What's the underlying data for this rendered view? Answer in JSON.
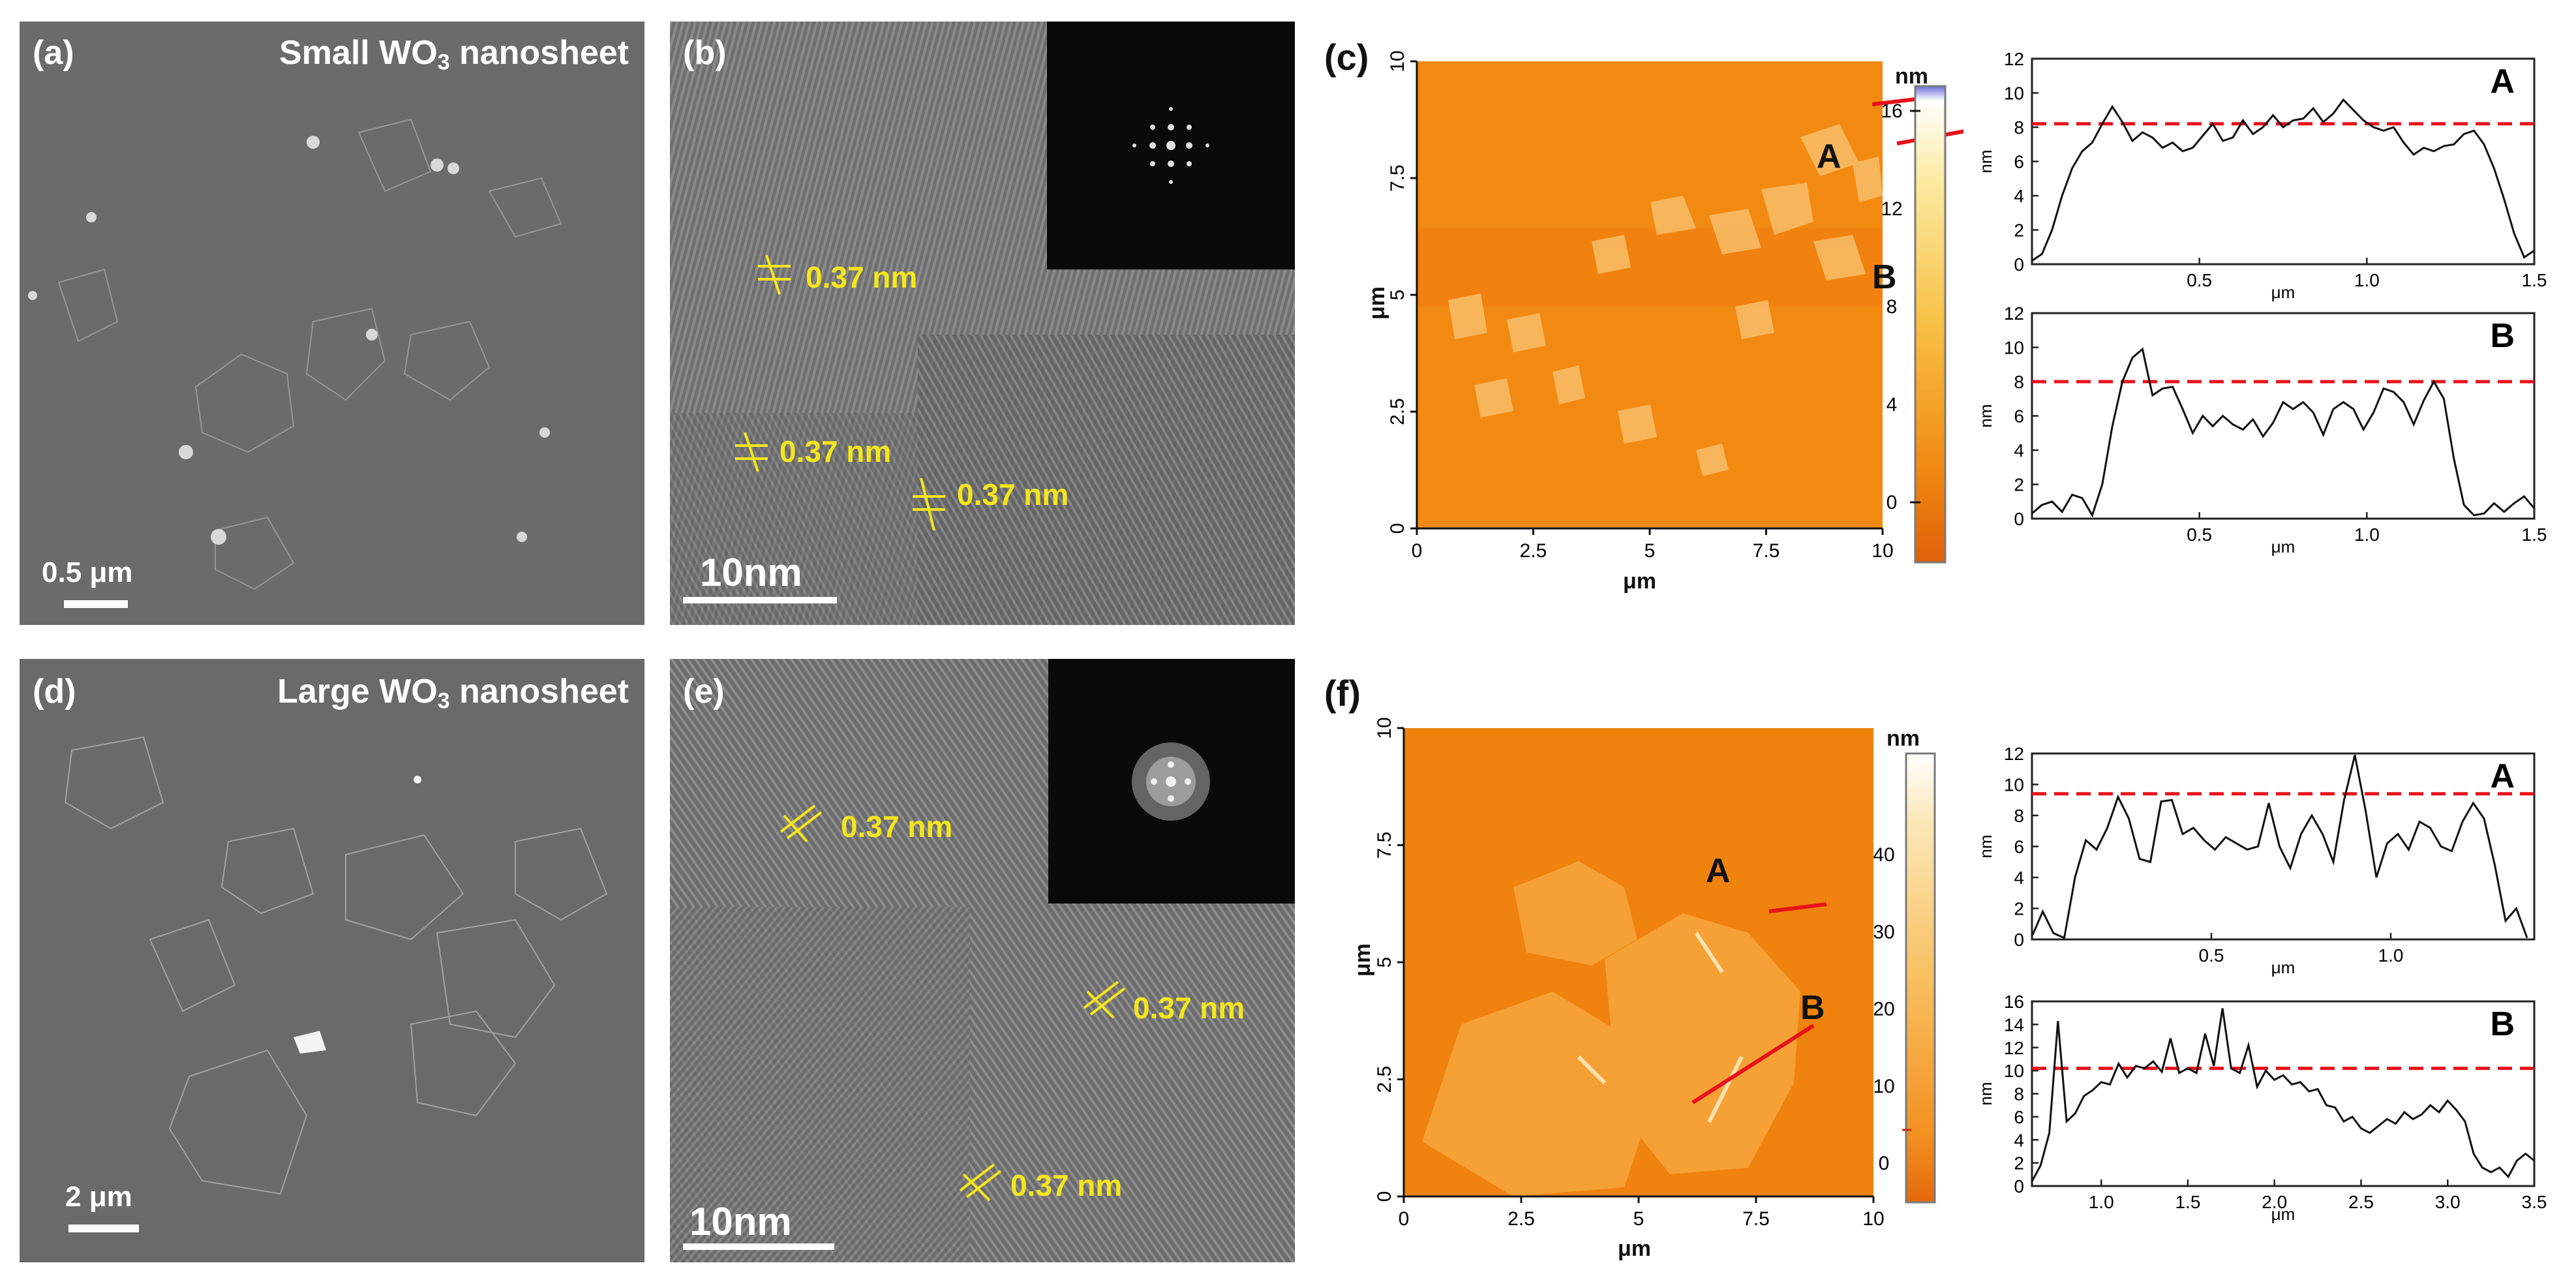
{
  "panels": {
    "a": {
      "label": "(a)",
      "title_pre": "Small WO",
      "title_sub": "3",
      "title_post": " nanosheet",
      "scale_bar": "0.5 μm"
    },
    "b": {
      "label": "(b)",
      "fringes": [
        "0.37 nm",
        "0.37 nm",
        "0.37 nm"
      ],
      "scale_bar": "10nm"
    },
    "c": {
      "label": "(c)",
      "axis_unit": "μm",
      "x_ticks": [
        "0",
        "2.5",
        "5",
        "7.5",
        "10"
      ],
      "y_ticks": [
        "0",
        "2.5",
        "5",
        "7.5",
        "10"
      ],
      "colorbar_unit": "nm",
      "colorbar_ticks": [
        "0",
        "4",
        "8",
        "12",
        "16"
      ],
      "line_labels": [
        "A",
        "B"
      ]
    },
    "d": {
      "label": "(d)",
      "title_pre": "Large WO",
      "title_sub": "3",
      "title_post": " nanosheet",
      "scale_bar": "2 μm"
    },
    "e": {
      "label": "(e)",
      "fringes": [
        "0.37 nm",
        "0.37 nm",
        "0.37 nm"
      ],
      "scale_bar": "10nm"
    },
    "f": {
      "label": "(f)",
      "axis_unit": "μm",
      "x_ticks": [
        "0",
        "2.5",
        "5",
        "7.5",
        "10"
      ],
      "y_ticks": [
        "0",
        "2.5",
        "5",
        "7.5",
        "10"
      ],
      "colorbar_unit": "nm",
      "colorbar_ticks": [
        "0",
        "10",
        "20",
        "30",
        "40"
      ],
      "line_labels": [
        "A",
        "B"
      ]
    }
  },
  "chart_data": [
    {
      "id": "c-A",
      "type": "line",
      "label": "A",
      "xlabel": "μm",
      "ylabel": "nm",
      "xlim": [
        0,
        1.5
      ],
      "ylim": [
        0,
        12
      ],
      "xticks": [
        "0.5",
        "1.0",
        "1.5"
      ],
      "yticks": [
        "0",
        "2",
        "4",
        "6",
        "8",
        "10",
        "12"
      ],
      "reference_line": 8.2,
      "x": [
        0.0,
        0.03,
        0.06,
        0.09,
        0.12,
        0.15,
        0.18,
        0.21,
        0.24,
        0.27,
        0.3,
        0.33,
        0.36,
        0.39,
        0.42,
        0.45,
        0.48,
        0.51,
        0.54,
        0.57,
        0.6,
        0.63,
        0.66,
        0.69,
        0.72,
        0.75,
        0.78,
        0.81,
        0.84,
        0.87,
        0.9,
        0.93,
        0.96,
        0.99,
        1.02,
        1.05,
        1.08,
        1.11,
        1.14,
        1.17,
        1.2,
        1.23,
        1.26,
        1.29,
        1.32,
        1.35,
        1.38,
        1.41,
        1.44,
        1.47,
        1.5
      ],
      "y": [
        0.2,
        0.6,
        2.0,
        4.0,
        5.6,
        6.6,
        7.1,
        8.2,
        9.2,
        8.3,
        7.2,
        7.7,
        7.4,
        6.8,
        7.1,
        6.6,
        6.8,
        7.5,
        8.2,
        7.2,
        7.4,
        8.4,
        7.6,
        8.0,
        8.7,
        8.0,
        8.4,
        8.5,
        9.1,
        8.3,
        8.8,
        9.6,
        9.0,
        8.4,
        8.0,
        7.8,
        8.0,
        7.1,
        6.4,
        6.8,
        6.6,
        6.9,
        7.0,
        7.6,
        7.8,
        7.0,
        5.6,
        3.8,
        1.8,
        0.4,
        0.8
      ]
    },
    {
      "id": "c-B",
      "type": "line",
      "label": "B",
      "xlabel": "μm",
      "ylabel": "nm",
      "xlim": [
        0,
        1.5
      ],
      "ylim": [
        0,
        12
      ],
      "xticks": [
        "0.5",
        "1.0",
        "1.5"
      ],
      "yticks": [
        "0",
        "2",
        "4",
        "6",
        "8",
        "10",
        "12"
      ],
      "reference_line": 8.0,
      "x": [
        0.0,
        0.03,
        0.06,
        0.09,
        0.12,
        0.15,
        0.18,
        0.21,
        0.24,
        0.27,
        0.3,
        0.33,
        0.36,
        0.39,
        0.42,
        0.45,
        0.48,
        0.51,
        0.54,
        0.57,
        0.6,
        0.63,
        0.66,
        0.69,
        0.72,
        0.75,
        0.78,
        0.81,
        0.84,
        0.87,
        0.9,
        0.93,
        0.96,
        0.99,
        1.02,
        1.05,
        1.08,
        1.11,
        1.14,
        1.17,
        1.2,
        1.23,
        1.26,
        1.29,
        1.32,
        1.35,
        1.38,
        1.41,
        1.44,
        1.47,
        1.5
      ],
      "y": [
        0.3,
        0.8,
        1.0,
        0.4,
        1.4,
        1.2,
        0.2,
        2.0,
        5.4,
        8.0,
        9.4,
        9.9,
        7.2,
        7.6,
        7.7,
        6.4,
        5.0,
        6.0,
        5.4,
        6.0,
        5.5,
        5.2,
        5.8,
        4.8,
        5.6,
        6.8,
        6.4,
        6.8,
        6.2,
        4.9,
        6.4,
        6.8,
        6.4,
        5.2,
        6.2,
        7.6,
        7.4,
        6.8,
        5.5,
        6.9,
        8.0,
        7.0,
        3.5,
        0.8,
        0.2,
        0.3,
        0.9,
        0.4,
        0.9,
        1.3,
        0.6
      ]
    },
    {
      "id": "f-A",
      "type": "line",
      "label": "A",
      "xlabel": "μm",
      "ylabel": "nm",
      "xlim": [
        0,
        1.4
      ],
      "ylim": [
        0,
        12
      ],
      "xticks": [
        "0.5",
        "1.0"
      ],
      "yticks": [
        "0",
        "2",
        "4",
        "6",
        "8",
        "10",
        "12"
      ],
      "reference_line": 9.4,
      "x": [
        0.0,
        0.03,
        0.06,
        0.09,
        0.12,
        0.15,
        0.18,
        0.21,
        0.24,
        0.27,
        0.3,
        0.33,
        0.36,
        0.39,
        0.42,
        0.45,
        0.48,
        0.51,
        0.54,
        0.57,
        0.6,
        0.63,
        0.66,
        0.69,
        0.72,
        0.75,
        0.78,
        0.81,
        0.84,
        0.87,
        0.9,
        0.93,
        0.96,
        0.99,
        1.02,
        1.05,
        1.08,
        1.11,
        1.14,
        1.17,
        1.2,
        1.23,
        1.26,
        1.29,
        1.32,
        1.35,
        1.38
      ],
      "y": [
        0.2,
        1.8,
        0.4,
        0.1,
        4.0,
        6.4,
        5.8,
        7.2,
        9.2,
        7.8,
        5.2,
        5.0,
        8.9,
        9.0,
        6.8,
        7.2,
        6.4,
        5.8,
        6.6,
        6.2,
        5.8,
        6.0,
        8.8,
        6.0,
        4.6,
        6.8,
        8.0,
        6.8,
        5.0,
        9.0,
        11.9,
        8.3,
        4.0,
        6.2,
        6.8,
        5.8,
        7.6,
        7.2,
        6.0,
        5.7,
        7.6,
        8.8,
        7.8,
        4.8,
        1.2,
        2.0,
        0.1
      ]
    },
    {
      "id": "f-B",
      "type": "line",
      "label": "B",
      "xlabel": "μm",
      "ylabel": "nm",
      "xlim": [
        0.6,
        3.5
      ],
      "ylim": [
        0,
        16
      ],
      "xticks": [
        "1.0",
        "1.5",
        "2.0",
        "2.5",
        "3.0",
        "3.5"
      ],
      "yticks": [
        "0",
        "2",
        "4",
        "6",
        "8",
        "10",
        "12",
        "14",
        "16"
      ],
      "reference_line": 10.2,
      "x": [
        0.6,
        0.65,
        0.7,
        0.75,
        0.8,
        0.85,
        0.9,
        0.95,
        1.0,
        1.05,
        1.1,
        1.15,
        1.2,
        1.25,
        1.3,
        1.35,
        1.4,
        1.45,
        1.5,
        1.55,
        1.6,
        1.65,
        1.7,
        1.75,
        1.8,
        1.85,
        1.9,
        1.95,
        2.0,
        2.05,
        2.1,
        2.15,
        2.2,
        2.25,
        2.3,
        2.35,
        2.4,
        2.45,
        2.5,
        2.55,
        2.6,
        2.65,
        2.7,
        2.75,
        2.8,
        2.85,
        2.9,
        2.95,
        3.0,
        3.05,
        3.1,
        3.15,
        3.2,
        3.25,
        3.3,
        3.35,
        3.4,
        3.45,
        3.5
      ],
      "y": [
        0.4,
        1.8,
        4.6,
        14.3,
        5.6,
        6.3,
        7.8,
        8.3,
        9.0,
        8.8,
        10.6,
        9.4,
        10.4,
        10.2,
        10.8,
        9.9,
        12.8,
        9.8,
        10.2,
        9.8,
        13.2,
        10.4,
        15.4,
        10.2,
        9.8,
        12.2,
        8.6,
        10.0,
        9.2,
        9.6,
        8.8,
        9.0,
        8.2,
        8.4,
        7.0,
        6.8,
        5.6,
        6.0,
        5.0,
        4.6,
        5.2,
        5.8,
        5.4,
        6.4,
        5.8,
        6.2,
        7.0,
        6.4,
        7.4,
        6.6,
        5.6,
        2.8,
        1.6,
        1.2,
        1.6,
        0.8,
        2.2,
        2.8,
        2.2
      ]
    }
  ]
}
